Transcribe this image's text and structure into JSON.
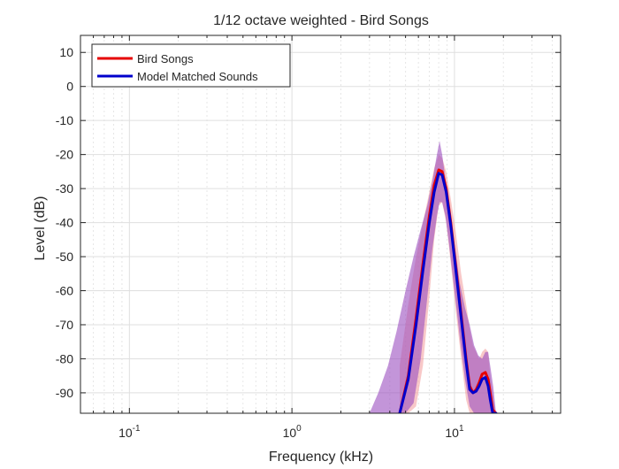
{
  "chart_data": {
    "type": "line",
    "title": "1/12 octave weighted - Bird Songs",
    "xlabel": "Frequency (kHz)",
    "ylabel": "Level (dB)",
    "xscale": "log",
    "xlim": [
      0.05,
      45
    ],
    "ylim": [
      -96,
      15
    ],
    "grid": true,
    "legend_position": "top-left",
    "x_ticks": [
      {
        "value": 0.1,
        "base": "10",
        "exp": "-1"
      },
      {
        "value": 1,
        "base": "10",
        "exp": "0"
      },
      {
        "value": 10,
        "base": "10",
        "exp": "1"
      }
    ],
    "y_ticks": [
      "10",
      "0",
      "-10",
      "-20",
      "-30",
      "-40",
      "-50",
      "-60",
      "-70",
      "-80",
      "-90"
    ],
    "y_tick_values": [
      10,
      0,
      -10,
      -20,
      -30,
      -40,
      -50,
      -60,
      -70,
      -80,
      -90
    ],
    "series": [
      {
        "name": "Bird Songs",
        "color": "#e60000",
        "x": [
          4.6,
          5.2,
          5.8,
          6.4,
          7.0,
          7.5,
          8.0,
          8.4,
          8.9,
          9.5,
          10.2,
          11.0,
          11.8,
          12.4,
          13.0,
          13.6,
          14.2,
          14.8,
          15.5,
          16.1,
          16.6,
          17.2,
          18.0
        ],
        "values": [
          -96,
          -85,
          -68,
          -52,
          -38,
          -29,
          -24.5,
          -25,
          -30,
          -40,
          -53,
          -67,
          -80,
          -88,
          -90,
          -89,
          -87,
          -84.5,
          -84,
          -86,
          -90,
          -95,
          -96
        ]
      },
      {
        "name": "Model Matched Sounds",
        "color": "#0000cc",
        "x": [
          4.6,
          5.2,
          5.8,
          6.4,
          7.0,
          7.5,
          8.0,
          8.4,
          8.9,
          9.5,
          10.2,
          11.0,
          11.8,
          12.4,
          13.0,
          13.6,
          14.2,
          14.8,
          15.5,
          16.1,
          16.6,
          17.2,
          18.0
        ],
        "values": [
          -96,
          -86,
          -70,
          -54,
          -40,
          -31,
          -25.5,
          -26,
          -31,
          -41,
          -54,
          -68,
          -81,
          -89,
          -90,
          -89.5,
          -88,
          -86,
          -85.5,
          -88,
          -92,
          -96,
          -96
        ]
      }
    ],
    "bands": [
      {
        "name": "Bird Songs range",
        "color": "#f4a3a3",
        "x": [
          4.6,
          5.2,
          5.8,
          6.4,
          7.0,
          7.5,
          8.0,
          8.4,
          8.9,
          9.5,
          10.2,
          11.0,
          11.8,
          12.4,
          13.0,
          13.6,
          14.2,
          14.8,
          15.5,
          16.1,
          16.6,
          17.2,
          18.0,
          19.0
        ],
        "upper": [
          -82,
          -64,
          -50,
          -40,
          -31,
          -24,
          -20,
          -21,
          -25,
          -33,
          -43,
          -55,
          -64,
          -71,
          -76,
          -78,
          -80,
          -78,
          -77,
          -78,
          -85,
          -90,
          -96,
          -96
        ],
        "lower": [
          -96,
          -96,
          -94,
          -82,
          -62,
          -45,
          -35,
          -34,
          -40,
          -52,
          -66,
          -80,
          -92,
          -96,
          -96,
          -96,
          -96,
          -96,
          -96,
          -96,
          -96,
          -96,
          -96,
          -96
        ]
      },
      {
        "name": "Model Matched Sounds range",
        "color": "#9b4fbf",
        "x": [
          3.0,
          3.4,
          3.9,
          4.4,
          5.0,
          5.6,
          6.2,
          6.8,
          7.3,
          7.8,
          8.1,
          8.4,
          8.8,
          9.3,
          10.0,
          10.8,
          11.6,
          12.4,
          13.2,
          14.0,
          14.8,
          15.5,
          16.1,
          16.7,
          17.3,
          18.0
        ],
        "upper": [
          -96,
          -90,
          -82,
          -72,
          -60,
          -50,
          -42,
          -35,
          -28,
          -20,
          -16,
          -20,
          -27,
          -36,
          -46,
          -58,
          -65,
          -70,
          -76,
          -79,
          -80,
          -78,
          -78,
          -83,
          -88,
          -96
        ],
        "lower": [
          -96,
          -96,
          -96,
          -96,
          -96,
          -93,
          -80,
          -62,
          -48,
          -38,
          -34,
          -34,
          -38,
          -47,
          -60,
          -74,
          -86,
          -94,
          -96,
          -96,
          -96,
          -96,
          -96,
          -96,
          -96,
          -96
        ]
      }
    ]
  }
}
